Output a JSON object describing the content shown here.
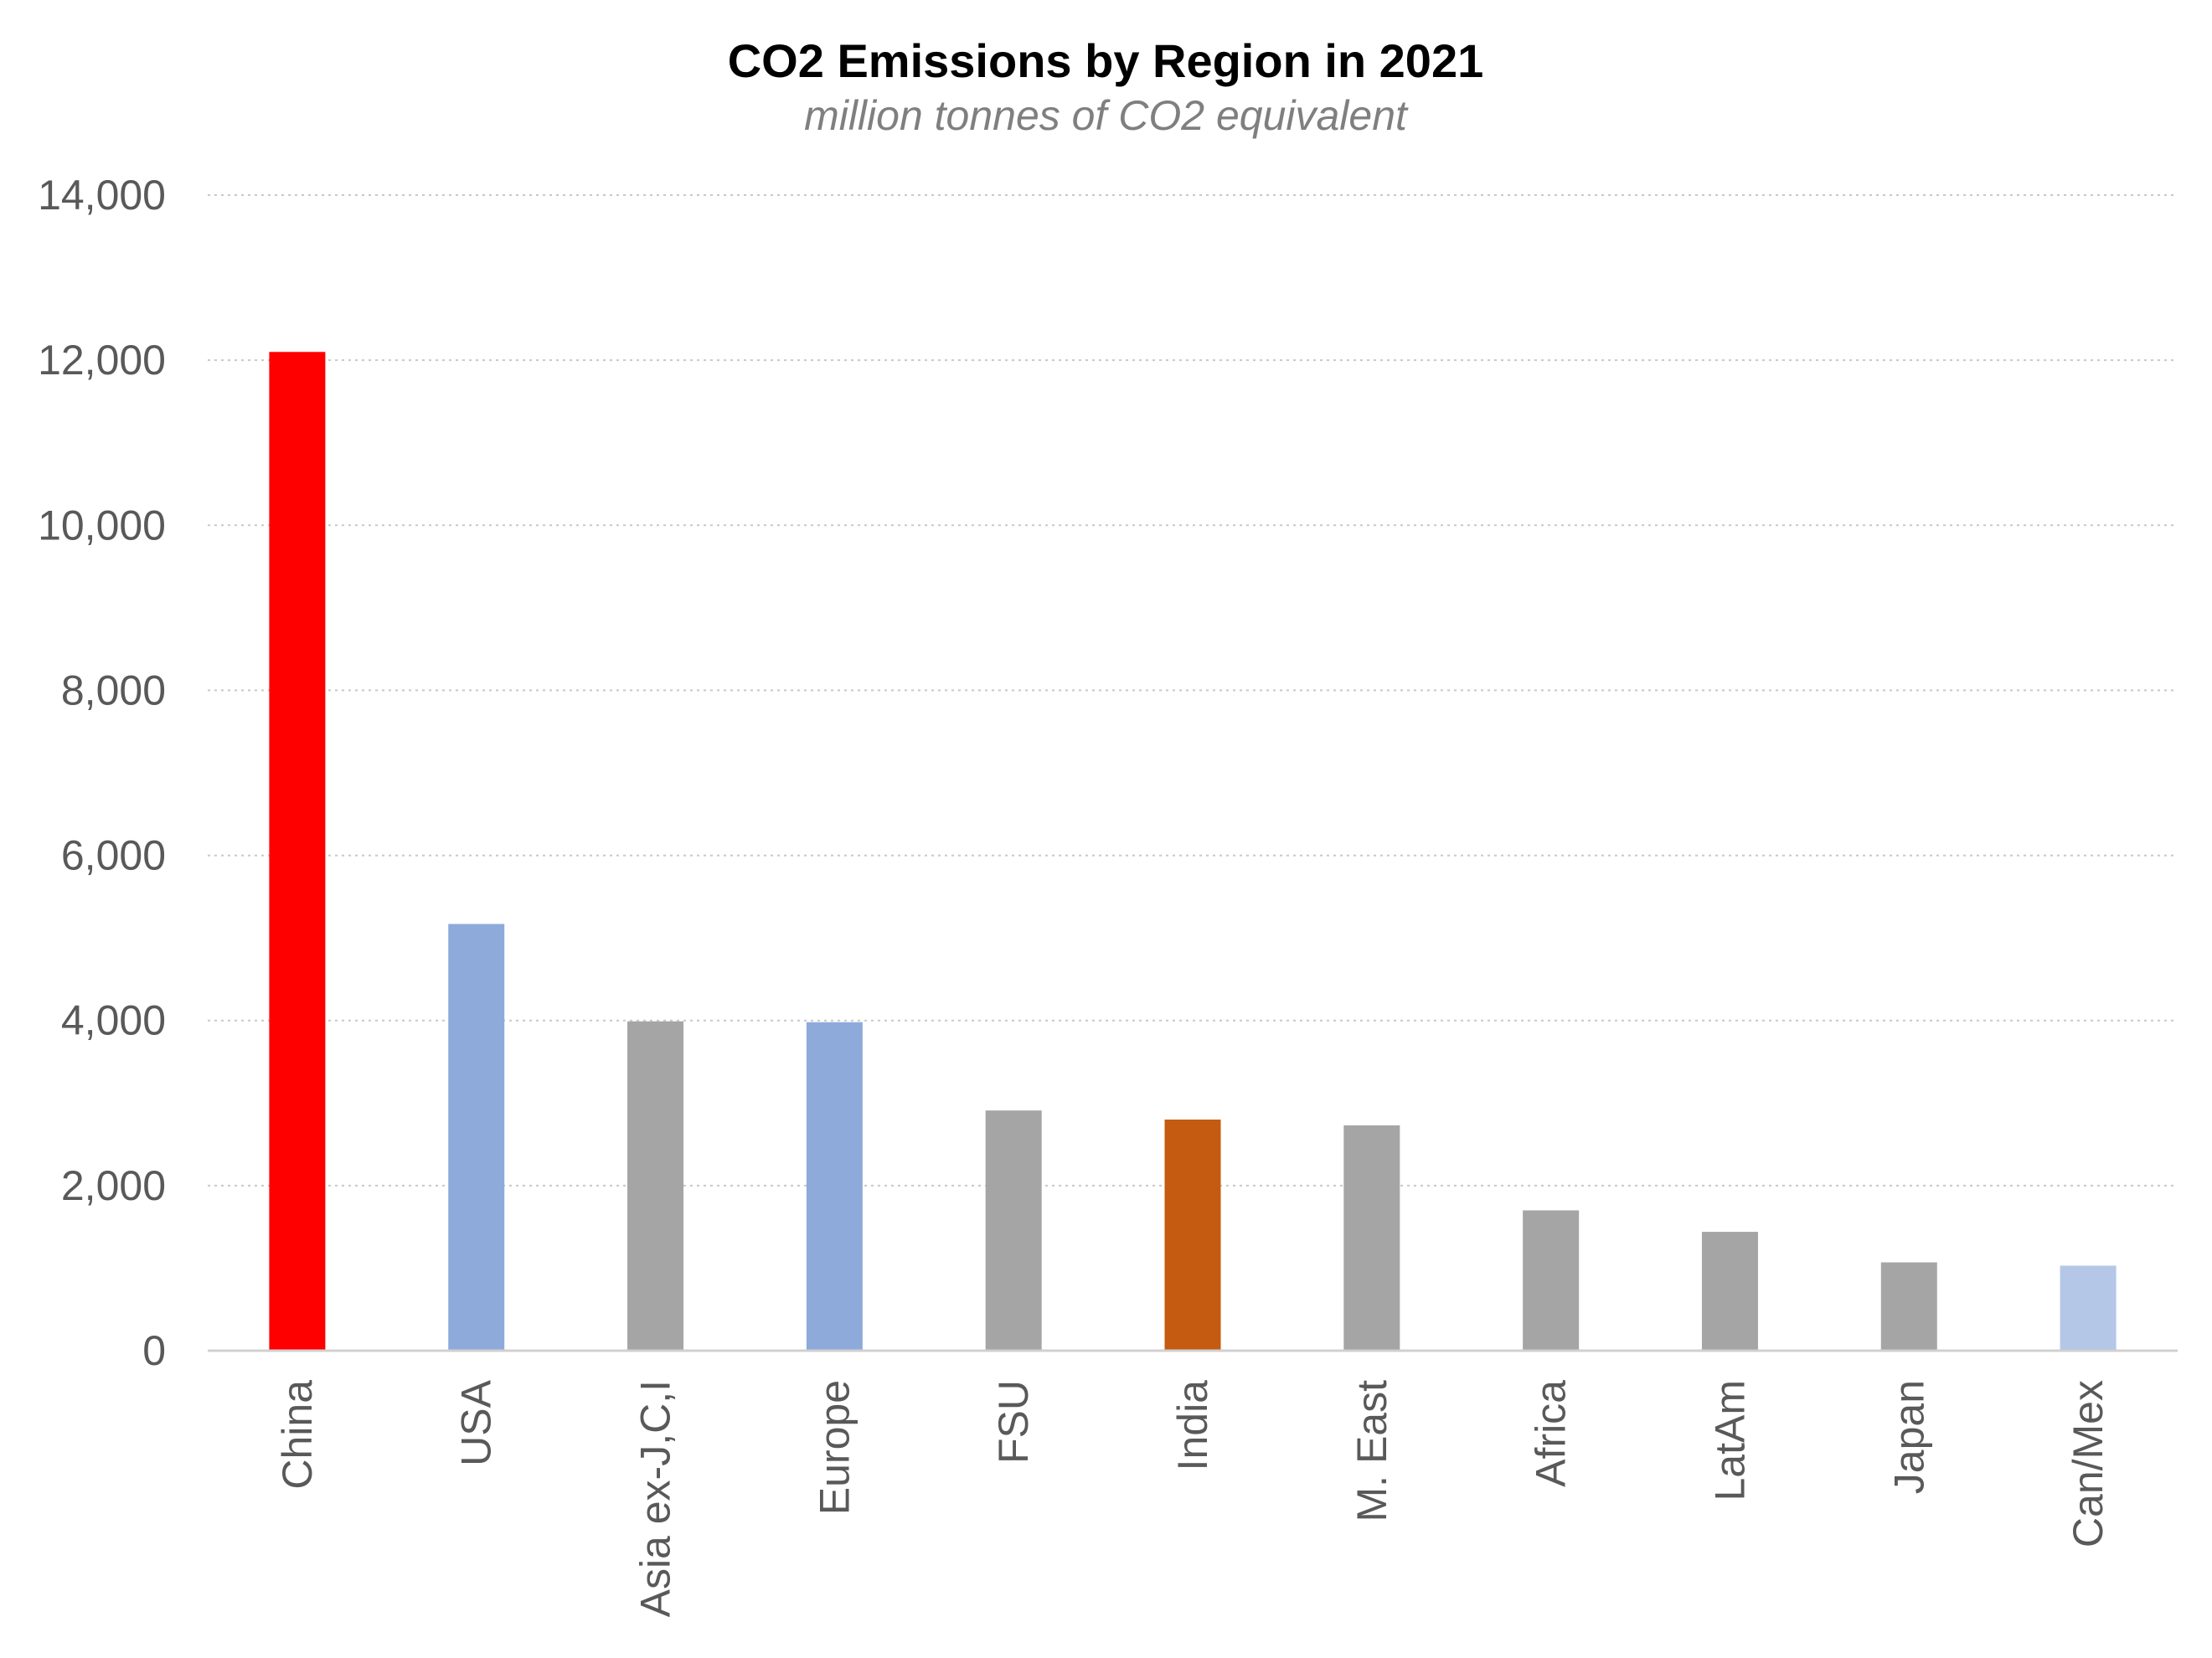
{
  "chart_data": {
    "type": "bar",
    "title": "CO2 Emissions by Region in 2021",
    "subtitle": "million tonnes of CO2 equivalent",
    "xlabel": "",
    "ylabel": "",
    "categories": [
      "China",
      "USA",
      "Asia ex-J,C,I",
      "Europe",
      "FSU",
      "India",
      "M. East",
      "Africa",
      "LatAm",
      "Japan",
      "Can/Mex"
    ],
    "values": [
      12100,
      5170,
      3990,
      3980,
      2910,
      2800,
      2730,
      1700,
      1440,
      1070,
      1030
    ],
    "colors": [
      "#ff0000",
      "#8eaadb",
      "#a5a5a5",
      "#8eaadb",
      "#a5a5a5",
      "#c55a11",
      "#a5a5a5",
      "#a5a5a5",
      "#a5a5a5",
      "#a5a5a5",
      "#b4c7e7"
    ],
    "ylim": [
      0,
      14000
    ],
    "yticks": [
      0,
      2000,
      4000,
      6000,
      8000,
      10000,
      12000,
      14000
    ],
    "ytick_labels": [
      "0",
      "2,000",
      "4,000",
      "6,000",
      "8,000",
      "10,000",
      "12,000",
      "14,000"
    ],
    "grid": true,
    "legend": "none"
  }
}
